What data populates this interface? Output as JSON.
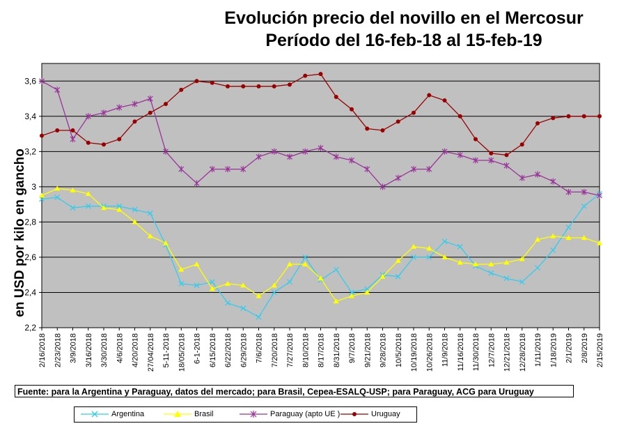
{
  "chart_data": {
    "type": "line",
    "title": "Evolución precio del novillo en el Mercosur",
    "subtitle": "Período del 16-feb-18 al 15-feb-19",
    "ylabel": "en USD por kilo en gancho",
    "xlabel": "",
    "ylim": [
      2.2,
      3.7
    ],
    "yticks": [
      "2,2",
      "2,4",
      "2,6",
      "2,8",
      "3",
      "3,2",
      "3,4",
      "3,6"
    ],
    "yticks_values": [
      2.2,
      2.4,
      2.6,
      2.8,
      3.0,
      3.2,
      3.4,
      3.6
    ],
    "grid": true,
    "categories": [
      "2/16/2018",
      "2/23/2018",
      "3/9/2018",
      "3/16/2018",
      "3/30/2018",
      "4/6/2018",
      "4/20/2018",
      "27/04/2018",
      "5-11-2018",
      "18/05/2018",
      "6-1-2018",
      "6/15/2018",
      "6/22/2018",
      "6/29/2018",
      "7/6/2018",
      "7/20/2018",
      "7/27/2018",
      "8/10/2018",
      "8/17/2018",
      "8/31/2018",
      "9/7/2018",
      "9/21/2018",
      "9/28/2018",
      "10/5/2018",
      "10/19/2018",
      "10/26/2018",
      "11/9/2018",
      "11/16/2018",
      "11/30/2018",
      "12/7/2018",
      "12/21/2018",
      "12/28/2018",
      "1/11/2019",
      "1/18/2019",
      "2/1/2019",
      "2/8/2019",
      "2/15/2019"
    ],
    "series": [
      {
        "name": "Argentina",
        "color": "#33ccee",
        "marker": "star",
        "values": [
          2.93,
          2.94,
          2.88,
          2.89,
          2.89,
          2.89,
          2.87,
          2.85,
          2.67,
          2.45,
          2.44,
          2.46,
          2.34,
          2.31,
          2.26,
          2.4,
          2.46,
          2.6,
          2.47,
          2.53,
          2.4,
          2.42,
          2.5,
          2.49,
          2.6,
          2.6,
          2.69,
          2.66,
          2.55,
          2.51,
          2.48,
          2.46,
          2.54,
          2.64,
          2.77,
          2.89,
          2.96
        ]
      },
      {
        "name": "Brasil",
        "color": "#ffff00",
        "marker": "triangle",
        "values": [
          2.95,
          2.99,
          2.98,
          2.96,
          2.88,
          2.87,
          2.8,
          2.72,
          2.68,
          2.53,
          2.56,
          2.42,
          2.45,
          2.44,
          2.38,
          2.44,
          2.56,
          2.56,
          2.48,
          2.35,
          2.38,
          2.4,
          2.49,
          2.58,
          2.66,
          2.65,
          2.6,
          2.57,
          2.56,
          2.56,
          2.57,
          2.59,
          2.7,
          2.72,
          2.71,
          2.71,
          2.68
        ]
      },
      {
        "name": "Paraguay (apto UE )",
        "color": "#993399",
        "marker": "asterisk",
        "values": [
          3.6,
          3.55,
          3.27,
          3.4,
          3.42,
          3.45,
          3.47,
          3.5,
          3.2,
          3.1,
          3.02,
          3.1,
          3.1,
          3.1,
          3.17,
          3.2,
          3.17,
          3.2,
          3.22,
          3.17,
          3.15,
          3.1,
          3.0,
          3.05,
          3.1,
          3.1,
          3.2,
          3.18,
          3.15,
          3.15,
          3.12,
          3.05,
          3.07,
          3.03,
          2.97,
          2.97,
          2.95
        ]
      },
      {
        "name": "Uruguay",
        "color": "#990000",
        "marker": "circle",
        "values": [
          3.29,
          3.32,
          3.32,
          3.25,
          3.24,
          3.27,
          3.37,
          3.42,
          3.47,
          3.55,
          3.6,
          3.59,
          3.57,
          3.57,
          3.57,
          3.57,
          3.58,
          3.63,
          3.64,
          3.51,
          3.44,
          3.33,
          3.32,
          3.37,
          3.42,
          3.52,
          3.49,
          3.4,
          3.27,
          3.19,
          3.18,
          3.24,
          3.36,
          3.39,
          3.4,
          3.4,
          3.4
        ]
      }
    ],
    "source": "Fuente: para la Argentina y Paraguay, datos del mercado; para Brasil, Cepea-ESALQ-USP; para Paraguay, ACG para Uruguay",
    "legend": [
      "Argentina",
      "Brasil",
      "Paraguay (apto UE )",
      "Uruguay"
    ],
    "legend_position": "bottom",
    "plot_background": "#c0c0c0"
  }
}
